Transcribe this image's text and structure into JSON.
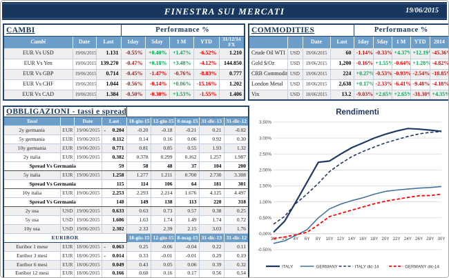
{
  "header": {
    "title": "FINESTRA SUI MERCATI",
    "date": "19/06/2015"
  },
  "cambi": {
    "title": "CAMBI",
    "perf_header": "Performance %",
    "columns": [
      "Cambi",
      "Date",
      "Last",
      "1day",
      "5day",
      "1 M",
      "YTD",
      "31/12/14 FX"
    ],
    "rows": [
      {
        "name": "EUR Vs USD",
        "date": "19/06/2015",
        "last": "1.131",
        "perf": [
          "-0.55%",
          "+0.40%",
          "+1.47%",
          "-6.52%"
        ],
        "fx": "1.210"
      },
      {
        "name": "EUR Vs Yen",
        "date": "19/06/2015",
        "last": "139.270",
        "perf": [
          "-0.47%",
          "+0.18%",
          "+3.48%",
          "-4.12%"
        ],
        "fx": "144.850"
      },
      {
        "name": "EUR Vs GBP",
        "date": "19/06/2015",
        "last": "0.714",
        "perf": [
          "-0.45%",
          "-1.47%",
          "-0.76%",
          "-8.83%"
        ],
        "fx": "0.777"
      },
      {
        "name": "EUR Vs CHF",
        "date": "19/06/2015",
        "last": "1.044",
        "perf": [
          "-0.56%",
          "-0.14%",
          "+0.06%",
          "-15.16%"
        ],
        "fx": "1.202"
      },
      {
        "name": "EUR Vs CAD",
        "date": "19/06/2015",
        "last": "1.384",
        "perf": [
          "-0.50%",
          "-0.30%",
          "+1.53%",
          "-1.55%"
        ],
        "fx": "1.406"
      }
    ]
  },
  "commodities": {
    "title": "COMMODITIES",
    "perf_header": "Performance %",
    "columns": [
      "",
      "",
      "Date",
      "Last",
      "1day",
      "5day",
      "1 M",
      "YTD",
      "2014"
    ],
    "rows": [
      {
        "name": "Crude Oil WTI",
        "ccy": "USD",
        "date": "19/06/2015",
        "last": "60",
        "perf": [
          "-1.14%",
          "-0.33%",
          "+4.37%",
          "+12.19%",
          "-45.36%"
        ]
      },
      {
        "name": "Gold $/Oz",
        "ccy": "USD",
        "date": "19/06/2015",
        "last": "1,200",
        "perf": [
          "-0.16%",
          "+1.55%",
          "-0.64%",
          "+1.28%",
          "-4.82%"
        ]
      },
      {
        "name": "CRB Commodity",
        "ccy": "USD",
        "date": "19/06/2015",
        "last": "224",
        "perf": [
          "+0.27%",
          "-0.53%",
          "-0.93%",
          "-2.54%",
          "-18.85%"
        ]
      },
      {
        "name": "London Metal",
        "ccy": "USD",
        "date": "18/06/2015",
        "last": "2,638",
        "perf": [
          "+0.17%",
          "-2.33%",
          "-6.41%",
          "-9.48%",
          "-4.18%"
        ]
      },
      {
        "name": "Vix",
        "ccy": "USD",
        "date": "18/06/2015",
        "last": "13.2",
        "perf": [
          "-9.03%",
          "+2.65%",
          "+2.65%",
          "-31.30%",
          "+4.35%"
        ]
      }
    ]
  },
  "obbligazioni": {
    "title": "OBBLIGAZIONI - tassi e spread",
    "columns": [
      "Tassi",
      "",
      "Date",
      "Last",
      "18-giu-15",
      "12-giu-15",
      "8-mag-15",
      "31-dic-13",
      "31-dic-12"
    ],
    "rows": [
      {
        "type": "rate",
        "name": "2y germania",
        "ccy": "EUR",
        "date": "19/06/2015",
        "last": "-0.204",
        "values": [
          "-0.20",
          "-0.18",
          "-0.21",
          "0.21",
          "-0.02"
        ]
      },
      {
        "type": "rate",
        "name": "5y germania",
        "ccy": "EUR",
        "date": "19/06/2015",
        "last": "0.112",
        "values": [
          "0.14",
          "0.16",
          "0.06",
          "0.92",
          "0.30"
        ]
      },
      {
        "type": "rate",
        "name": "10y germania",
        "ccy": "EUR",
        "date": "19/06/2015",
        "last": "0.771",
        "values": [
          "0.81",
          "0.85",
          "0.55",
          "1.93",
          "1.32"
        ]
      },
      {
        "type": "rate",
        "name": "2y italia",
        "ccy": "EUR",
        "date": "19/06/2015",
        "last": "0.382",
        "values": [
          "0.378",
          "0.299",
          "0.162",
          "1.257",
          "1.987"
        ]
      },
      {
        "type": "spread",
        "name": "Spread Vs Germania",
        "last": "59",
        "values": [
          "58",
          "48",
          "37",
          "104",
          "200"
        ]
      },
      {
        "type": "rate",
        "name": "5y italia",
        "ccy": "EUR",
        "date": "19/06/2015",
        "last": "1.258",
        "values": [
          "1.277",
          "1.211",
          "0.700",
          "2.730",
          "3.308"
        ]
      },
      {
        "type": "spread",
        "name": "Spread Vs Germania",
        "last": "115",
        "values": [
          "114",
          "106",
          "64",
          "181",
          "301"
        ]
      },
      {
        "type": "rate",
        "name": "10y italia",
        "ccy": "EUR",
        "date": "19/06/2015",
        "last": "2.253",
        "values": [
          "2.293",
          "2.214",
          "1.676",
          "4.125",
          "4.497"
        ]
      },
      {
        "type": "spread",
        "name": "Spread Vs Germania",
        "last": "148",
        "values": [
          "149",
          "138",
          "113",
          "220",
          "318"
        ]
      },
      {
        "type": "rate",
        "name": "2y usa",
        "ccy": "USD",
        "date": "19/06/2015",
        "last": "0.633",
        "values": [
          "0.63",
          "0.73",
          "0.57",
          "0.38",
          "0.25"
        ]
      },
      {
        "type": "rate",
        "name": "5y usa",
        "ccy": "USD",
        "date": "19/06/2015",
        "last": "1.606",
        "values": [
          "1.63",
          "1.74",
          "1.49",
          "1.74",
          "0.72"
        ]
      },
      {
        "type": "rate",
        "name": "10y usa",
        "ccy": "USD",
        "date": "19/06/2015",
        "last": "2.302",
        "values": [
          "2.33",
          "2.39",
          "2.15",
          "3.03",
          "1.76"
        ]
      }
    ],
    "euribor": {
      "title": "EURIBOR",
      "columns": [
        "18-giu-15",
        "12-giu-15",
        "8-mag-15",
        "31-dic-13",
        "31-dic-12"
      ],
      "rows": [
        {
          "name": "Euribor 1 mese",
          "ccy": "EUR",
          "date": "18/06/2015",
          "last": "-0.063",
          "values": [
            "0.25",
            "-0.06",
            "-0.04",
            "0.22",
            "0.11"
          ]
        },
        {
          "name": "Euribor 3 mesi",
          "ccy": "EUR",
          "date": "18/06/2015",
          "last": "-0.014",
          "values": [
            "0.33",
            "-0.01",
            "-0.01",
            "0.29",
            "0.19"
          ]
        },
        {
          "name": "Euribor 6 mesi",
          "ccy": "EUR",
          "date": "18/06/2015",
          "last": "0.049",
          "values": [
            "0.43",
            "0.05",
            "0.06",
            "0.39",
            "0.32"
          ]
        },
        {
          "name": "Euribor 12 mesi",
          "ccy": "EUR",
          "date": "18/06/2015",
          "last": "0.166",
          "values": [
            "0.60",
            "0.16",
            "0.17",
            "0.56",
            "0.54"
          ]
        }
      ]
    }
  },
  "chart_data": {
    "type": "line",
    "title": "Rendimenti",
    "x_labels": [
      "3M",
      "2Y",
      "4Y",
      "6Y",
      "8Y",
      "10Y",
      "12Y",
      "14Y",
      "16Y",
      "18Y",
      "20Y",
      "22Y",
      "24Y",
      "26Y",
      "28Y",
      "30Y"
    ],
    "y_ticks": [
      "3.50%",
      "3.00%",
      "2.50%",
      "2.00%",
      "1.50%",
      "1.00%",
      "0.50%",
      "0.00%",
      "-0.50%"
    ],
    "ylim": [
      -0.5,
      3.5
    ],
    "unit": "%",
    "grid": true,
    "legend_position": "bottom",
    "series": [
      {
        "name": "ITALY",
        "style": "solid",
        "color": "#1F3864",
        "width": 2.2,
        "values": [
          0.05,
          0.4,
          1.0,
          1.62,
          2.24,
          2.28,
          2.5,
          2.7,
          2.85,
          3.0,
          3.12,
          3.22,
          3.3,
          3.28,
          3.25,
          3.21
        ]
      },
      {
        "name": "GERMANY",
        "style": "solid",
        "color": "#41719C",
        "width": 1.6,
        "values": [
          -0.3,
          -0.22,
          -0.05,
          0.13,
          0.5,
          0.78,
          0.93,
          1.04,
          1.13,
          1.24,
          1.33,
          1.37,
          1.4,
          1.43,
          1.45,
          1.48
        ]
      },
      {
        "name": "ITALY dic-14",
        "style": "dashed",
        "color": "#1F3864",
        "width": 1.6,
        "values": [
          0.3,
          0.55,
          0.95,
          1.25,
          1.58,
          1.95,
          2.2,
          2.42,
          2.58,
          2.72,
          2.85,
          2.95,
          3.05,
          3.13,
          3.18,
          3.2
        ]
      },
      {
        "name": "GERMANY dic-14",
        "style": "dashed",
        "color": "#FF0000",
        "width": 1.8,
        "values": [
          -0.15,
          -0.1,
          -0.03,
          0.05,
          0.28,
          0.54,
          0.64,
          0.74,
          0.84,
          0.94,
          1.02,
          1.08,
          1.14,
          1.19,
          1.2,
          1.24
        ]
      }
    ]
  }
}
